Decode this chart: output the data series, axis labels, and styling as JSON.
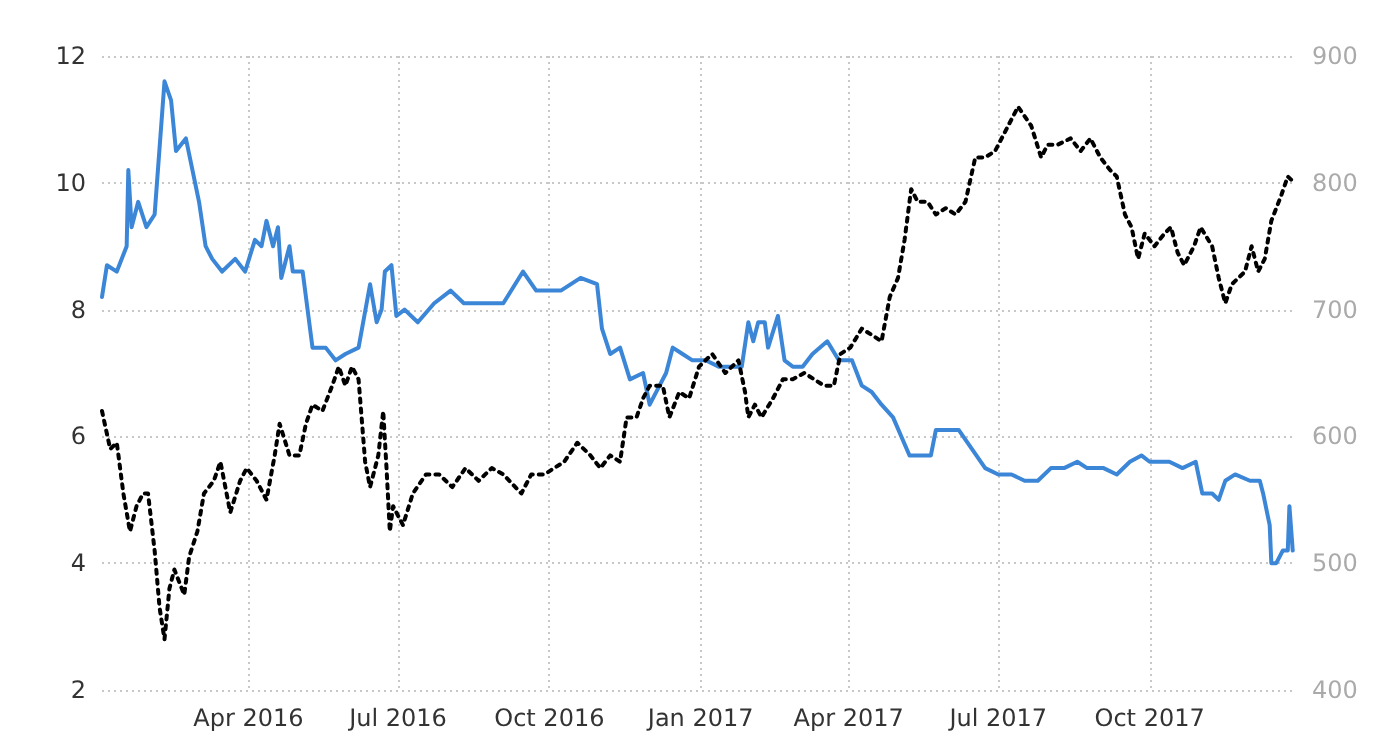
{
  "chart_data": {
    "type": "line",
    "xlim": [
      "2016-01-03",
      "2017-12-29"
    ],
    "xticks": [
      {
        "value": "2016-04-01",
        "label": "Apr 2016"
      },
      {
        "value": "2016-07-01",
        "label": "Jul 2016"
      },
      {
        "value": "2016-10-01",
        "label": "Oct 2016"
      },
      {
        "value": "2017-01-01",
        "label": "Jan 2017"
      },
      {
        "value": "2017-04-01",
        "label": "Apr 2017"
      },
      {
        "value": "2017-07-01",
        "label": "Jul 2017"
      },
      {
        "value": "2017-10-01",
        "label": "Oct 2017"
      }
    ],
    "ylim": [
      2,
      12
    ],
    "yticks": [
      2,
      4,
      6,
      8,
      10,
      12
    ],
    "y2lim": [
      400,
      900
    ],
    "y2ticks": [
      400,
      500,
      600,
      700,
      800,
      900
    ],
    "grid": true,
    "marker": "none",
    "series": [
      {
        "color": "#3c86d8",
        "line_style": "solid",
        "x": [
          "2016-01-03",
          "2016-01-06",
          "2016-01-12",
          "2016-01-18",
          "2016-01-19",
          "2016-01-21",
          "2016-01-25",
          "2016-01-30",
          "2016-02-04",
          "2016-02-10",
          "2016-02-14",
          "2016-02-17",
          "2016-02-23",
          "2016-02-27",
          "2016-03-02",
          "2016-03-06",
          "2016-03-10",
          "2016-03-16",
          "2016-03-24",
          "2016-03-30",
          "2016-04-05",
          "2016-04-09",
          "2016-04-12",
          "2016-04-16",
          "2016-04-19",
          "2016-04-21",
          "2016-04-26",
          "2016-04-28",
          "2016-05-04",
          "2016-05-10",
          "2016-05-18",
          "2016-05-24",
          "2016-05-30",
          "2016-06-07",
          "2016-06-14",
          "2016-06-18",
          "2016-06-21",
          "2016-06-23",
          "2016-06-27",
          "2016-06-30",
          "2016-07-05",
          "2016-07-13",
          "2016-07-23",
          "2016-08-02",
          "2016-08-10",
          "2016-08-18",
          "2016-09-03",
          "2016-09-15",
          "2016-09-23",
          "2016-10-08",
          "2016-10-20",
          "2016-10-30",
          "2016-11-02",
          "2016-11-07",
          "2016-11-13",
          "2016-11-19",
          "2016-11-27",
          "2016-12-01",
          "2016-12-07",
          "2016-12-11",
          "2016-12-15",
          "2016-12-21",
          "2016-12-27",
          "2017-01-04",
          "2017-01-12",
          "2017-01-20",
          "2017-01-26",
          "2017-01-30",
          "2017-02-02",
          "2017-02-05",
          "2017-02-09",
          "2017-02-11",
          "2017-02-17",
          "2017-02-21",
          "2017-02-26",
          "2017-03-04",
          "2017-03-10",
          "2017-03-19",
          "2017-03-26",
          "2017-04-03",
          "2017-04-09",
          "2017-04-15",
          "2017-04-21",
          "2017-04-28",
          "2017-05-08",
          "2017-05-16",
          "2017-05-21",
          "2017-05-24",
          "2017-05-30",
          "2017-06-07",
          "2017-06-15",
          "2017-06-23",
          "2017-07-01",
          "2017-07-09",
          "2017-07-17",
          "2017-07-25",
          "2017-08-02",
          "2017-08-10",
          "2017-08-18",
          "2017-08-24",
          "2017-09-03",
          "2017-09-11",
          "2017-09-19",
          "2017-09-26",
          "2017-10-01",
          "2017-10-13",
          "2017-10-21",
          "2017-10-29",
          "2017-11-02",
          "2017-11-08",
          "2017-11-12",
          "2017-11-16",
          "2017-11-22",
          "2017-12-01",
          "2017-12-07",
          "2017-12-09",
          "2017-12-13",
          "2017-12-14",
          "2017-12-17",
          "2017-12-21",
          "2017-12-24",
          "2017-12-25",
          "2017-12-27"
        ],
        "values": [
          8.2,
          8.7,
          8.6,
          9.0,
          10.2,
          9.3,
          9.7,
          9.3,
          9.5,
          11.6,
          11.3,
          10.5,
          10.7,
          10.2,
          9.7,
          9.0,
          8.8,
          8.6,
          8.8,
          8.6,
          9.1,
          9.0,
          9.4,
          9.0,
          9.3,
          8.5,
          9.0,
          8.6,
          8.6,
          7.4,
          7.4,
          7.2,
          7.3,
          7.4,
          8.4,
          7.8,
          8.0,
          8.6,
          8.7,
          7.9,
          8.0,
          7.8,
          8.1,
          8.3,
          8.1,
          8.1,
          8.1,
          8.6,
          8.3,
          8.3,
          8.5,
          8.4,
          7.7,
          7.3,
          7.4,
          6.9,
          7.0,
          6.5,
          6.8,
          7.0,
          7.4,
          7.3,
          7.2,
          7.2,
          7.1,
          7.1,
          7.1,
          7.8,
          7.5,
          7.8,
          7.8,
          7.4,
          7.9,
          7.2,
          7.1,
          7.1,
          7.3,
          7.5,
          7.2,
          7.2,
          6.8,
          6.7,
          6.5,
          6.3,
          5.7,
          5.7,
          5.7,
          6.1,
          6.1,
          6.1,
          5.8,
          5.5,
          5.4,
          5.4,
          5.3,
          5.3,
          5.5,
          5.5,
          5.6,
          5.5,
          5.5,
          5.4,
          5.6,
          5.7,
          5.6,
          5.6,
          5.5,
          5.6,
          5.1,
          5.1,
          5.0,
          5.3,
          5.4,
          5.3,
          5.3,
          5.1,
          4.6,
          4.0,
          4.0,
          4.2,
          4.2,
          4.9,
          4.2
        ]
      },
      {
        "color": "#000000",
        "axis": "y2",
        "line_style": "dotted",
        "x": [
          "2016-01-03",
          "2016-01-08",
          "2016-01-12",
          "2016-01-16",
          "2016-01-20",
          "2016-01-24",
          "2016-01-28",
          "2016-01-31",
          "2016-02-04",
          "2016-02-07",
          "2016-02-10",
          "2016-02-13",
          "2016-02-16",
          "2016-02-19",
          "2016-02-22",
          "2016-02-25",
          "2016-03-01",
          "2016-03-05",
          "2016-03-11",
          "2016-03-15",
          "2016-03-21",
          "2016-03-27",
          "2016-03-31",
          "2016-04-06",
          "2016-04-12",
          "2016-04-17",
          "2016-04-20",
          "2016-04-26",
          "2016-05-02",
          "2016-05-06",
          "2016-05-10",
          "2016-05-16",
          "2016-05-22",
          "2016-05-26",
          "2016-05-30",
          "2016-06-03",
          "2016-06-07",
          "2016-06-11",
          "2016-06-14",
          "2016-06-19",
          "2016-06-22",
          "2016-06-24",
          "2016-06-26",
          "2016-06-28",
          "2016-07-04",
          "2016-07-10",
          "2016-07-18",
          "2016-07-26",
          "2016-08-03",
          "2016-08-11",
          "2016-08-19",
          "2016-08-27",
          "2016-09-03",
          "2016-09-14",
          "2016-09-20",
          "2016-09-28",
          "2016-10-10",
          "2016-10-18",
          "2016-10-26",
          "2016-11-01",
          "2016-11-07",
          "2016-11-13",
          "2016-11-17",
          "2016-11-23",
          "2016-11-27",
          "2016-12-01",
          "2016-12-09",
          "2016-12-13",
          "2016-12-19",
          "2016-12-25",
          "2016-12-31",
          "2017-01-08",
          "2017-01-16",
          "2017-01-24",
          "2017-01-28",
          "2017-01-30",
          "2017-02-03",
          "2017-02-07",
          "2017-02-14",
          "2017-02-20",
          "2017-02-26",
          "2017-03-05",
          "2017-03-11",
          "2017-03-17",
          "2017-03-23",
          "2017-03-27",
          "2017-04-02",
          "2017-04-09",
          "2017-04-15",
          "2017-04-21",
          "2017-04-26",
          "2017-05-01",
          "2017-05-05",
          "2017-05-09",
          "2017-05-13",
          "2017-05-19",
          "2017-05-24",
          "2017-05-30",
          "2017-06-05",
          "2017-06-11",
          "2017-06-17",
          "2017-06-23",
          "2017-06-29",
          "2017-07-05",
          "2017-07-13",
          "2017-07-21",
          "2017-07-27",
          "2017-07-31",
          "2017-08-06",
          "2017-08-14",
          "2017-08-20",
          "2017-08-26",
          "2017-09-01",
          "2017-09-07",
          "2017-09-11",
          "2017-09-16",
          "2017-09-20",
          "2017-09-24",
          "2017-09-28",
          "2017-10-04",
          "2017-10-10",
          "2017-10-14",
          "2017-10-18",
          "2017-10-22",
          "2017-10-28",
          "2017-11-01",
          "2017-11-08",
          "2017-11-12",
          "2017-11-16",
          "2017-11-20",
          "2017-11-28",
          "2017-12-02",
          "2017-12-06",
          "2017-12-10",
          "2017-12-14",
          "2017-12-20",
          "2017-12-24",
          "2017-12-28"
        ],
        "values": [
          620,
          590,
          595,
          555,
          525,
          545,
          555,
          555,
          510,
          465,
          440,
          480,
          495,
          485,
          475,
          505,
          525,
          555,
          565,
          580,
          540,
          565,
          575,
          565,
          550,
          585,
          610,
          585,
          585,
          610,
          625,
          620,
          640,
          655,
          640,
          655,
          645,
          580,
          560,
          585,
          620,
          575,
          525,
          545,
          530,
          555,
          570,
          570,
          560,
          575,
          565,
          575,
          570,
          555,
          570,
          570,
          580,
          595,
          585,
          575,
          585,
          580,
          615,
          615,
          630,
          640,
          640,
          615,
          635,
          630,
          655,
          665,
          650,
          660,
          635,
          615,
          625,
          615,
          630,
          645,
          645,
          650,
          645,
          640,
          640,
          665,
          670,
          685,
          680,
          675,
          710,
          725,
          755,
          795,
          785,
          785,
          775,
          780,
          775,
          785,
          820,
          820,
          825,
          840,
          860,
          845,
          820,
          830,
          830,
          835,
          825,
          835,
          820,
          810,
          805,
          775,
          765,
          740,
          760,
          750,
          760,
          765,
          745,
          735,
          750,
          765,
          750,
          725,
          705,
          720,
          730,
          750,
          730,
          740,
          770,
          790,
          805,
          800
        ]
      }
    ]
  }
}
